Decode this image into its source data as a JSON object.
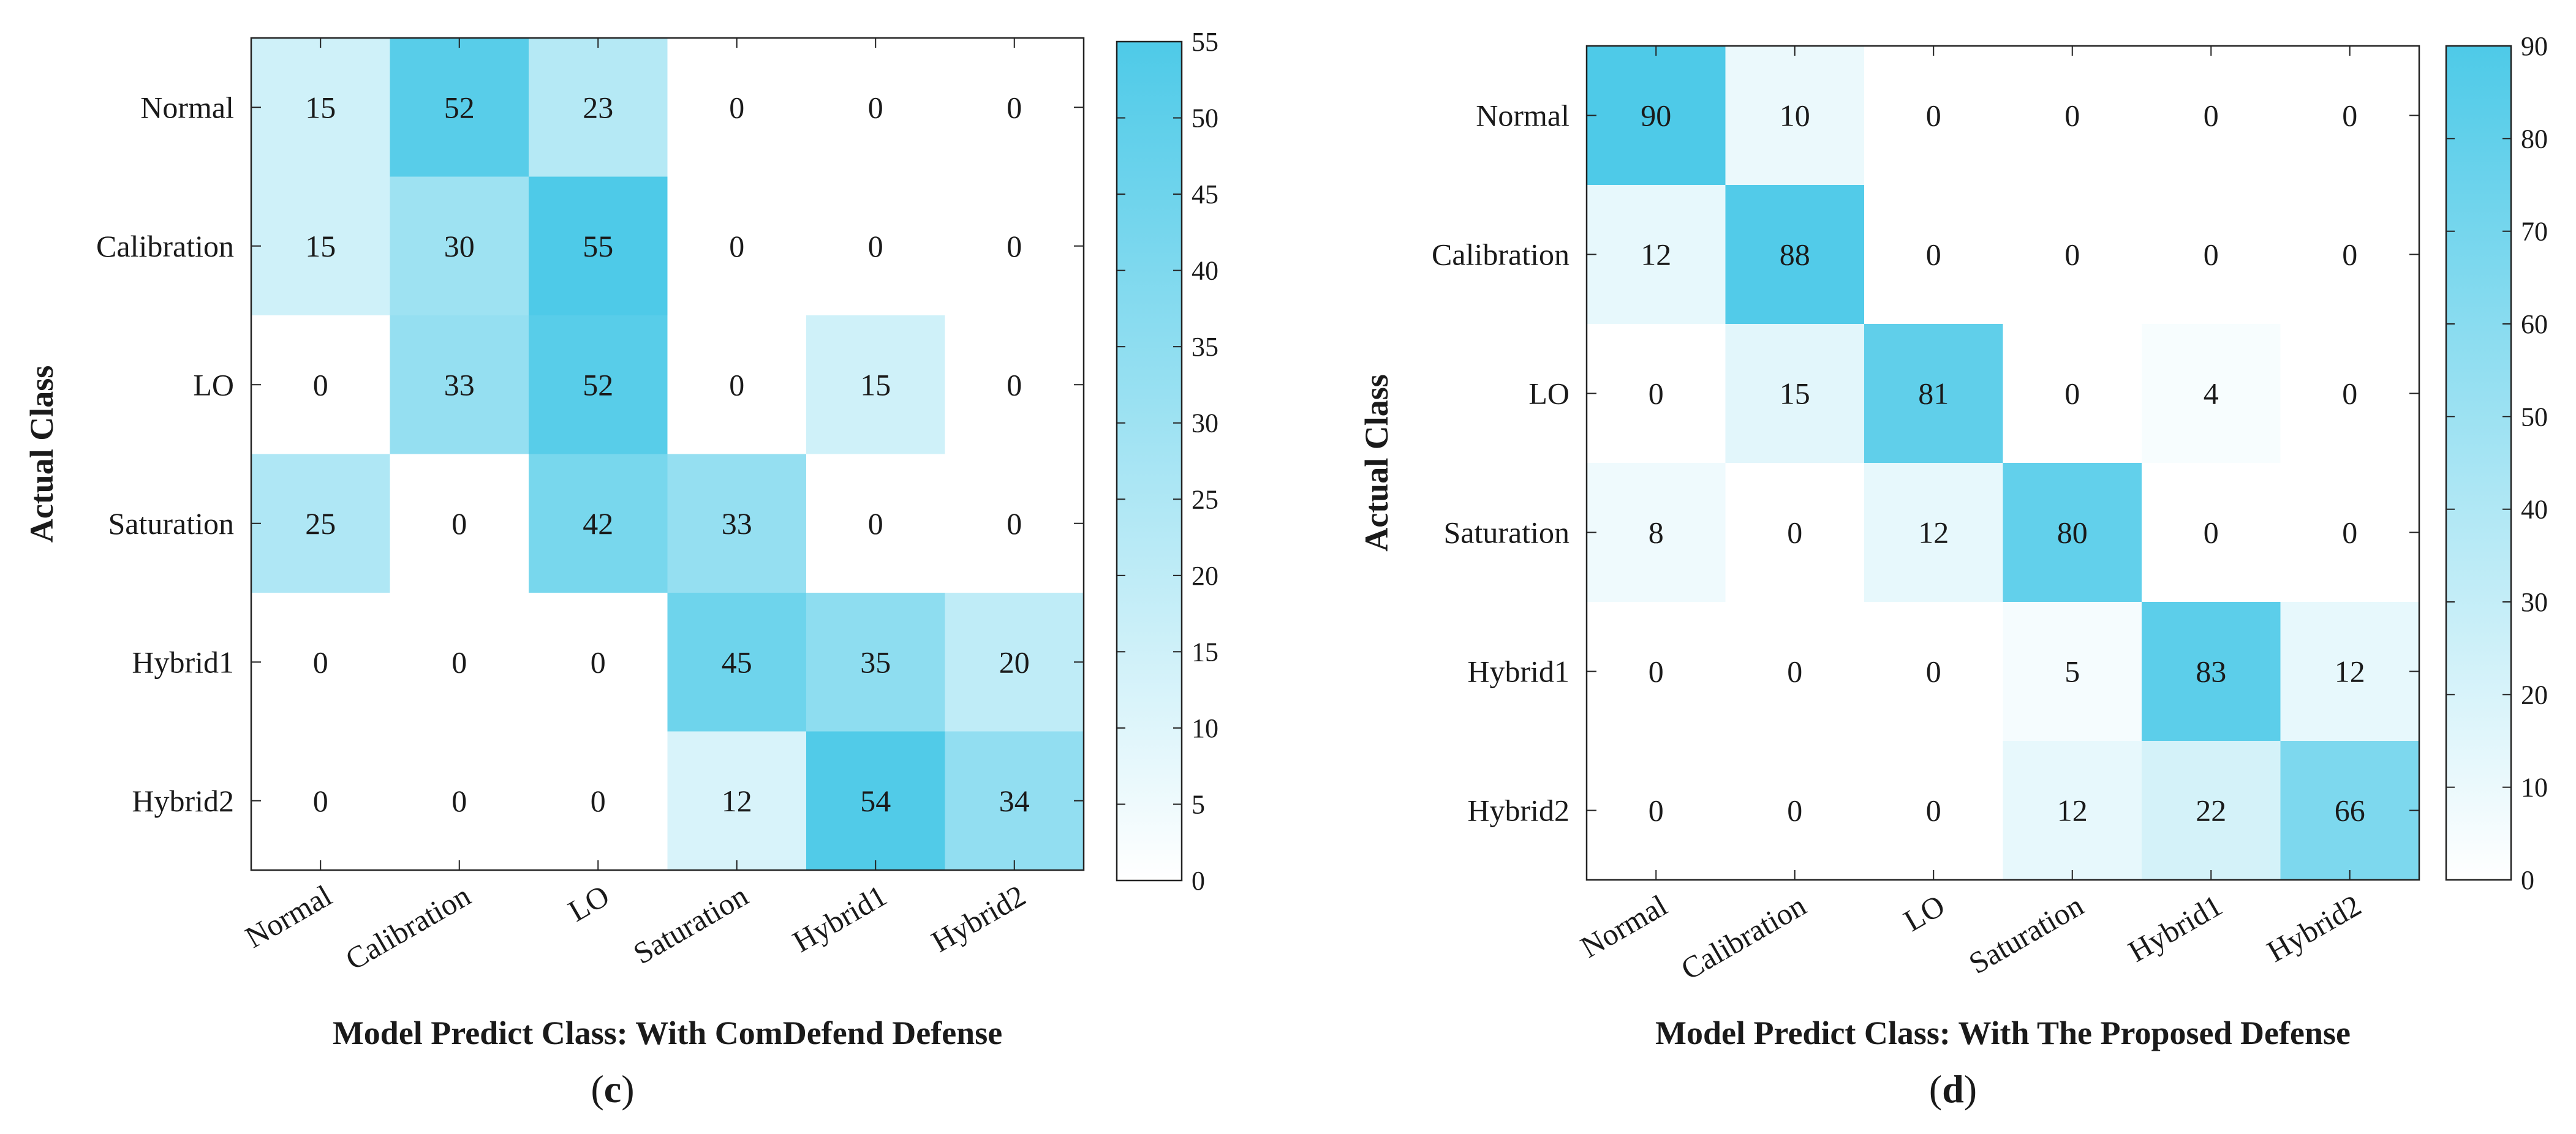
{
  "chart_data": [
    {
      "type": "heatmap",
      "panel_label": "(c)",
      "panel_letter": "c",
      "xlabel": "Model Predict Class: With ComDefend Defense",
      "ylabel": "Actual Class",
      "x_categories": [
        "Normal",
        "Calibration",
        "LO",
        "Saturation",
        "Hybrid1",
        "Hybrid2"
      ],
      "y_categories": [
        "Normal",
        "Calibration",
        "LO",
        "Saturation",
        "Hybrid1",
        "Hybrid2"
      ],
      "values": [
        [
          15,
          52,
          23,
          0,
          0,
          0
        ],
        [
          15,
          30,
          55,
          0,
          0,
          0
        ],
        [
          0,
          33,
          52,
          0,
          15,
          0
        ],
        [
          25,
          0,
          42,
          33,
          0,
          0
        ],
        [
          0,
          0,
          0,
          45,
          35,
          20
        ],
        [
          0,
          0,
          0,
          12,
          54,
          34
        ]
      ],
      "colorbar": {
        "min": 0,
        "max": 55,
        "ticks": [
          0,
          5,
          10,
          15,
          20,
          25,
          30,
          35,
          40,
          45,
          50,
          55
        ]
      },
      "colormap": {
        "low": "#ffffff",
        "high": "#4ecae8"
      }
    },
    {
      "type": "heatmap",
      "panel_label": "(d)",
      "panel_letter": "d",
      "xlabel": "Model Predict Class: With The Proposed Defense",
      "ylabel": "Actual Class",
      "x_categories": [
        "Normal",
        "Calibration",
        "LO",
        "Saturation",
        "Hybrid1",
        "Hybrid2"
      ],
      "y_categories": [
        "Normal",
        "Calibration",
        "LO",
        "Saturation",
        "Hybrid1",
        "Hybrid2"
      ],
      "values": [
        [
          90,
          10,
          0,
          0,
          0,
          0
        ],
        [
          12,
          88,
          0,
          0,
          0,
          0
        ],
        [
          0,
          15,
          81,
          0,
          4,
          0
        ],
        [
          8,
          0,
          12,
          80,
          0,
          0
        ],
        [
          0,
          0,
          0,
          5,
          83,
          12
        ],
        [
          0,
          0,
          0,
          12,
          22,
          66
        ]
      ],
      "colorbar": {
        "min": 0,
        "max": 90,
        "ticks": [
          0,
          10,
          20,
          30,
          40,
          50,
          60,
          70,
          80,
          90
        ]
      },
      "colormap": {
        "low": "#ffffff",
        "high": "#4ecae8"
      }
    }
  ]
}
